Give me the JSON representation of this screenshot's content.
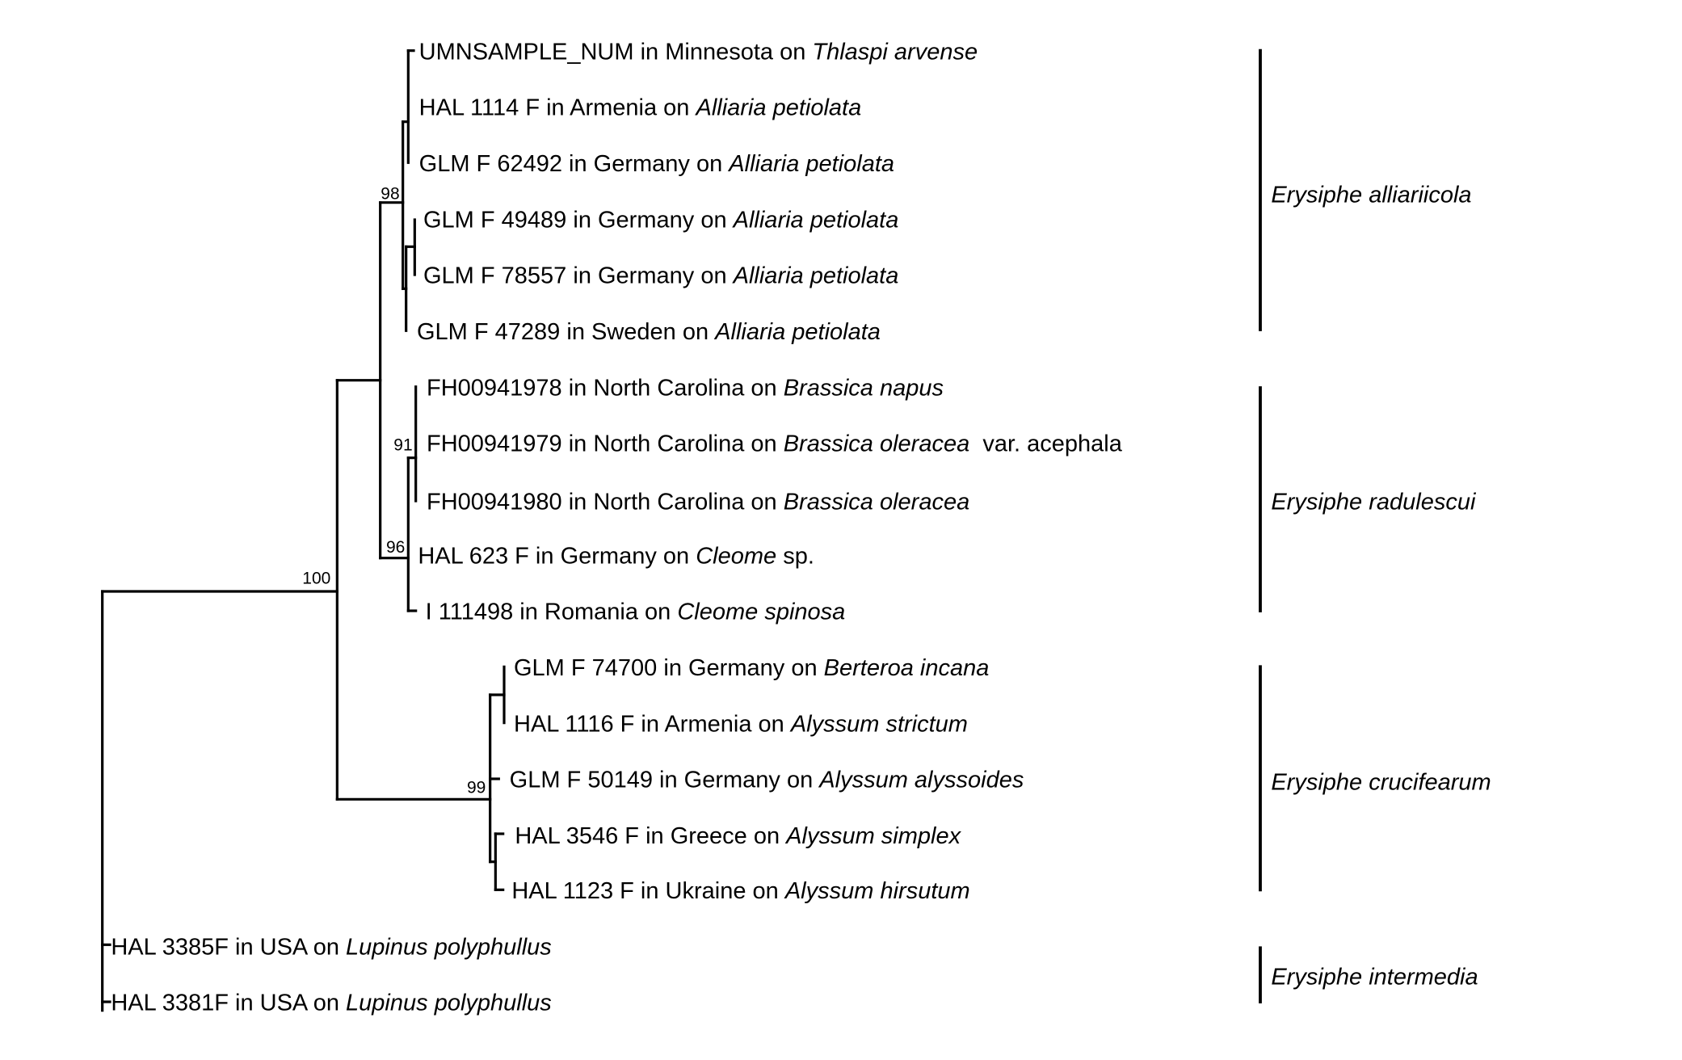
{
  "taxa": [
    {
      "id": "t1",
      "label": [
        {
          "text": "UMNSAMPLE_NUM in Minnesota on "
        },
        {
          "text": "Thlaspi arvense",
          "italic": true
        }
      ]
    },
    {
      "id": "t2",
      "label": [
        {
          "text": "HAL 1114 F in Armenia on "
        },
        {
          "text": "Alliaria petiolata",
          "italic": true
        }
      ]
    },
    {
      "id": "t3",
      "label": [
        {
          "text": "GLM F 62492 in Germany on "
        },
        {
          "text": "Alliaria petiolata",
          "italic": true
        }
      ]
    },
    {
      "id": "t4",
      "label": [
        {
          "text": "GLM F 49489 in Germany on "
        },
        {
          "text": "Alliaria petiolata",
          "italic": true
        }
      ]
    },
    {
      "id": "t5",
      "label": [
        {
          "text": "GLM F 78557 in Germany on "
        },
        {
          "text": "Alliaria petiolata",
          "italic": true
        }
      ]
    },
    {
      "id": "t6",
      "label": [
        {
          "text": "GLM F 47289 in Sweden on "
        },
        {
          "text": "Alliaria petiolata",
          "italic": true
        }
      ]
    },
    {
      "id": "t7",
      "label": [
        {
          "text": "FH00941978 in North Carolina on "
        },
        {
          "text": "Brassica napus",
          "italic": true
        }
      ]
    },
    {
      "id": "t8",
      "label": [
        {
          "text": "FH00941979 in North Carolina on "
        },
        {
          "text": "Brassica oleracea",
          "italic": true
        },
        {
          "text": "  var. acephala"
        }
      ]
    },
    {
      "id": "t9",
      "label": [
        {
          "text": "FH00941980 in North Carolina on "
        },
        {
          "text": "Brassica oleracea",
          "italic": true
        }
      ]
    },
    {
      "id": "t10",
      "label": [
        {
          "text": "HAL 623 F in Germany on "
        },
        {
          "text": "Cleome",
          "italic": true
        },
        {
          "text": " sp."
        }
      ]
    },
    {
      "id": "t11",
      "label": [
        {
          "text": "I 111498 in Romania on "
        },
        {
          "text": "Cleome spinosa",
          "italic": true
        }
      ]
    },
    {
      "id": "t12",
      "label": [
        {
          "text": "GLM F 74700 in Germany on "
        },
        {
          "text": "Berteroa incana",
          "italic": true
        }
      ]
    },
    {
      "id": "t13",
      "label": [
        {
          "text": "HAL 1116 F in Armenia on "
        },
        {
          "text": "Alyssum strictum",
          "italic": true
        }
      ]
    },
    {
      "id": "t14",
      "label": [
        {
          "text": "GLM F 50149 in Germany on "
        },
        {
          "text": "Alyssum alyssoides",
          "italic": true
        }
      ]
    },
    {
      "id": "t15",
      "label": [
        {
          "text": "HAL 3546 F in Greece on "
        },
        {
          "text": "Alyssum simplex",
          "italic": true
        }
      ]
    },
    {
      "id": "t16",
      "label": [
        {
          "text": "HAL 1123 F in Ukraine on "
        },
        {
          "text": "Alyssum hirsutum",
          "italic": true
        }
      ]
    },
    {
      "id": "t17",
      "label": [
        {
          "text": "HAL 3385F in USA on "
        },
        {
          "text": "Lupinus polyphullus",
          "italic": true
        }
      ]
    },
    {
      "id": "t18",
      "label": [
        {
          "text": "HAL 3381F in USA on "
        },
        {
          "text": "Lupinus polyphullus",
          "italic": true
        }
      ]
    }
  ],
  "support_values": {
    "root_ingroup": "100",
    "alliariicola_clade": "98",
    "brassica_clade": "91",
    "radulescui_clade": "96",
    "crucifearum_clade": "99"
  },
  "clades": [
    {
      "id": "c1",
      "name": "Erysiphe alliariicola"
    },
    {
      "id": "c2",
      "name": "Erysiphe radulescui"
    },
    {
      "id": "c3",
      "name": "Erysiphe crucifearum"
    },
    {
      "id": "c4",
      "name": "Erysiphe intermedia"
    }
  ]
}
